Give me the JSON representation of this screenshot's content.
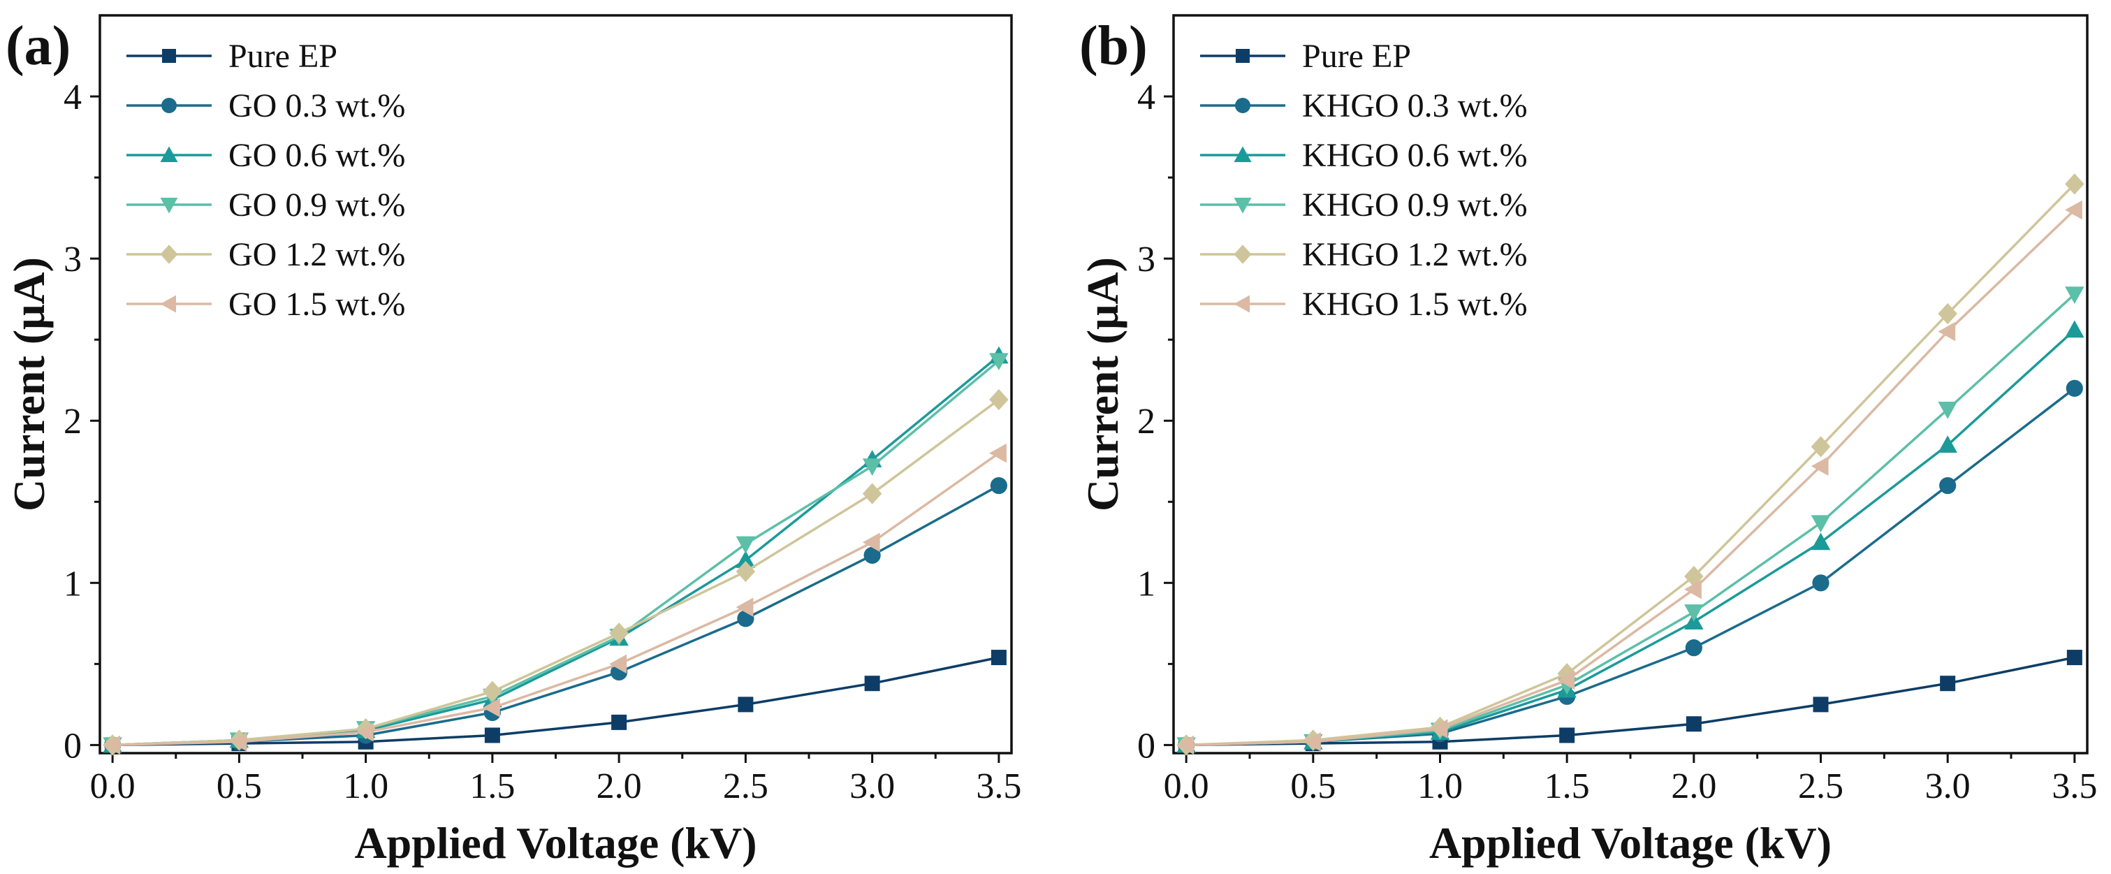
{
  "chart_data": [
    {
      "type": "line",
      "panel_label": "(a)",
      "xlabel": "Applied Voltage (kV)",
      "ylabel": "Current (μA)",
      "xlim": [
        -0.05,
        3.55
      ],
      "ylim": [
        -0.05,
        4.5
      ],
      "x_ticks": [
        0.0,
        0.5,
        1.0,
        1.5,
        2.0,
        2.5,
        3.0,
        3.5
      ],
      "x_tick_labels": [
        "0.0",
        "0.5",
        "1.0",
        "1.5",
        "2.0",
        "2.5",
        "3.0",
        "3.5"
      ],
      "y_ticks": [
        0,
        1,
        2,
        3,
        4
      ],
      "y_tick_labels": [
        "0",
        "1",
        "2",
        "3",
        "4"
      ],
      "legend_position": "top-left",
      "x": [
        0.0,
        0.5,
        1.0,
        1.5,
        2.0,
        2.5,
        3.0,
        3.5
      ],
      "series": [
        {
          "name": "Pure EP",
          "marker": "square",
          "color": "#0d3d66",
          "values": [
            0,
            0.01,
            0.02,
            0.06,
            0.14,
            0.25,
            0.38,
            0.54
          ]
        },
        {
          "name": "GO 0.3 wt.%",
          "marker": "circle",
          "color": "#1a6b8c",
          "values": [
            0,
            0.02,
            0.06,
            0.2,
            0.45,
            0.78,
            1.17,
            1.6
          ]
        },
        {
          "name": "GO 0.6 wt.%",
          "marker": "triangle-up",
          "color": "#1b9a9a",
          "values": [
            0,
            0.03,
            0.09,
            0.28,
            0.66,
            1.14,
            1.76,
            2.4
          ]
        },
        {
          "name": "GO 0.9 wt.%",
          "marker": "triangle-down",
          "color": "#5cbfa8",
          "values": [
            0,
            0.03,
            0.1,
            0.3,
            0.67,
            1.24,
            1.72,
            2.37
          ]
        },
        {
          "name": "GO 1.2 wt.%",
          "marker": "diamond",
          "color": "#cfc59a",
          "values": [
            0,
            0.03,
            0.1,
            0.33,
            0.69,
            1.07,
            1.55,
            2.13
          ]
        },
        {
          "name": "GO 1.5 wt.%",
          "marker": "triangle-left",
          "color": "#dbb9a3",
          "values": [
            0,
            0.02,
            0.08,
            0.23,
            0.5,
            0.85,
            1.25,
            1.8
          ]
        }
      ]
    },
    {
      "type": "line",
      "panel_label": "(b)",
      "xlabel": "Applied Voltage (kV)",
      "ylabel": "Current (μA)",
      "xlim": [
        -0.05,
        3.55
      ],
      "ylim": [
        -0.05,
        4.5
      ],
      "x_ticks": [
        0.0,
        0.5,
        1.0,
        1.5,
        2.0,
        2.5,
        3.0,
        3.5
      ],
      "x_tick_labels": [
        "0.0",
        "0.5",
        "1.0",
        "1.5",
        "2.0",
        "2.5",
        "3.0",
        "3.5"
      ],
      "y_ticks": [
        0,
        1,
        2,
        3,
        4
      ],
      "y_tick_labels": [
        "0",
        "1",
        "2",
        "3",
        "4"
      ],
      "legend_position": "top-left",
      "x": [
        0.0,
        0.5,
        1.0,
        1.5,
        2.0,
        2.5,
        3.0,
        3.5
      ],
      "series": [
        {
          "name": "Pure EP",
          "marker": "square",
          "color": "#0d3d66",
          "values": [
            0,
            0.01,
            0.02,
            0.06,
            0.13,
            0.25,
            0.38,
            0.54
          ]
        },
        {
          "name": "KHGO 0.3 wt.%",
          "marker": "circle",
          "color": "#1a6b8c",
          "values": [
            0,
            0.02,
            0.07,
            0.3,
            0.6,
            1.0,
            1.6,
            2.2
          ]
        },
        {
          "name": "KHGO 0.6 wt.%",
          "marker": "triangle-up",
          "color": "#1b9a9a",
          "values": [
            0,
            0.02,
            0.08,
            0.34,
            0.76,
            1.25,
            1.85,
            2.56
          ]
        },
        {
          "name": "KHGO 0.9 wt.%",
          "marker": "triangle-down",
          "color": "#5cbfa8",
          "values": [
            0,
            0.02,
            0.09,
            0.37,
            0.82,
            1.37,
            2.07,
            2.78
          ]
        },
        {
          "name": "KHGO 1.2 wt.%",
          "marker": "diamond",
          "color": "#cfc59a",
          "values": [
            0,
            0.03,
            0.11,
            0.44,
            1.04,
            1.84,
            2.66,
            3.46
          ]
        },
        {
          "name": "KHGO 1.5 wt.%",
          "marker": "triangle-left",
          "color": "#dbb9a3",
          "values": [
            0,
            0.02,
            0.1,
            0.4,
            0.96,
            1.72,
            2.55,
            3.3
          ]
        }
      ]
    }
  ]
}
